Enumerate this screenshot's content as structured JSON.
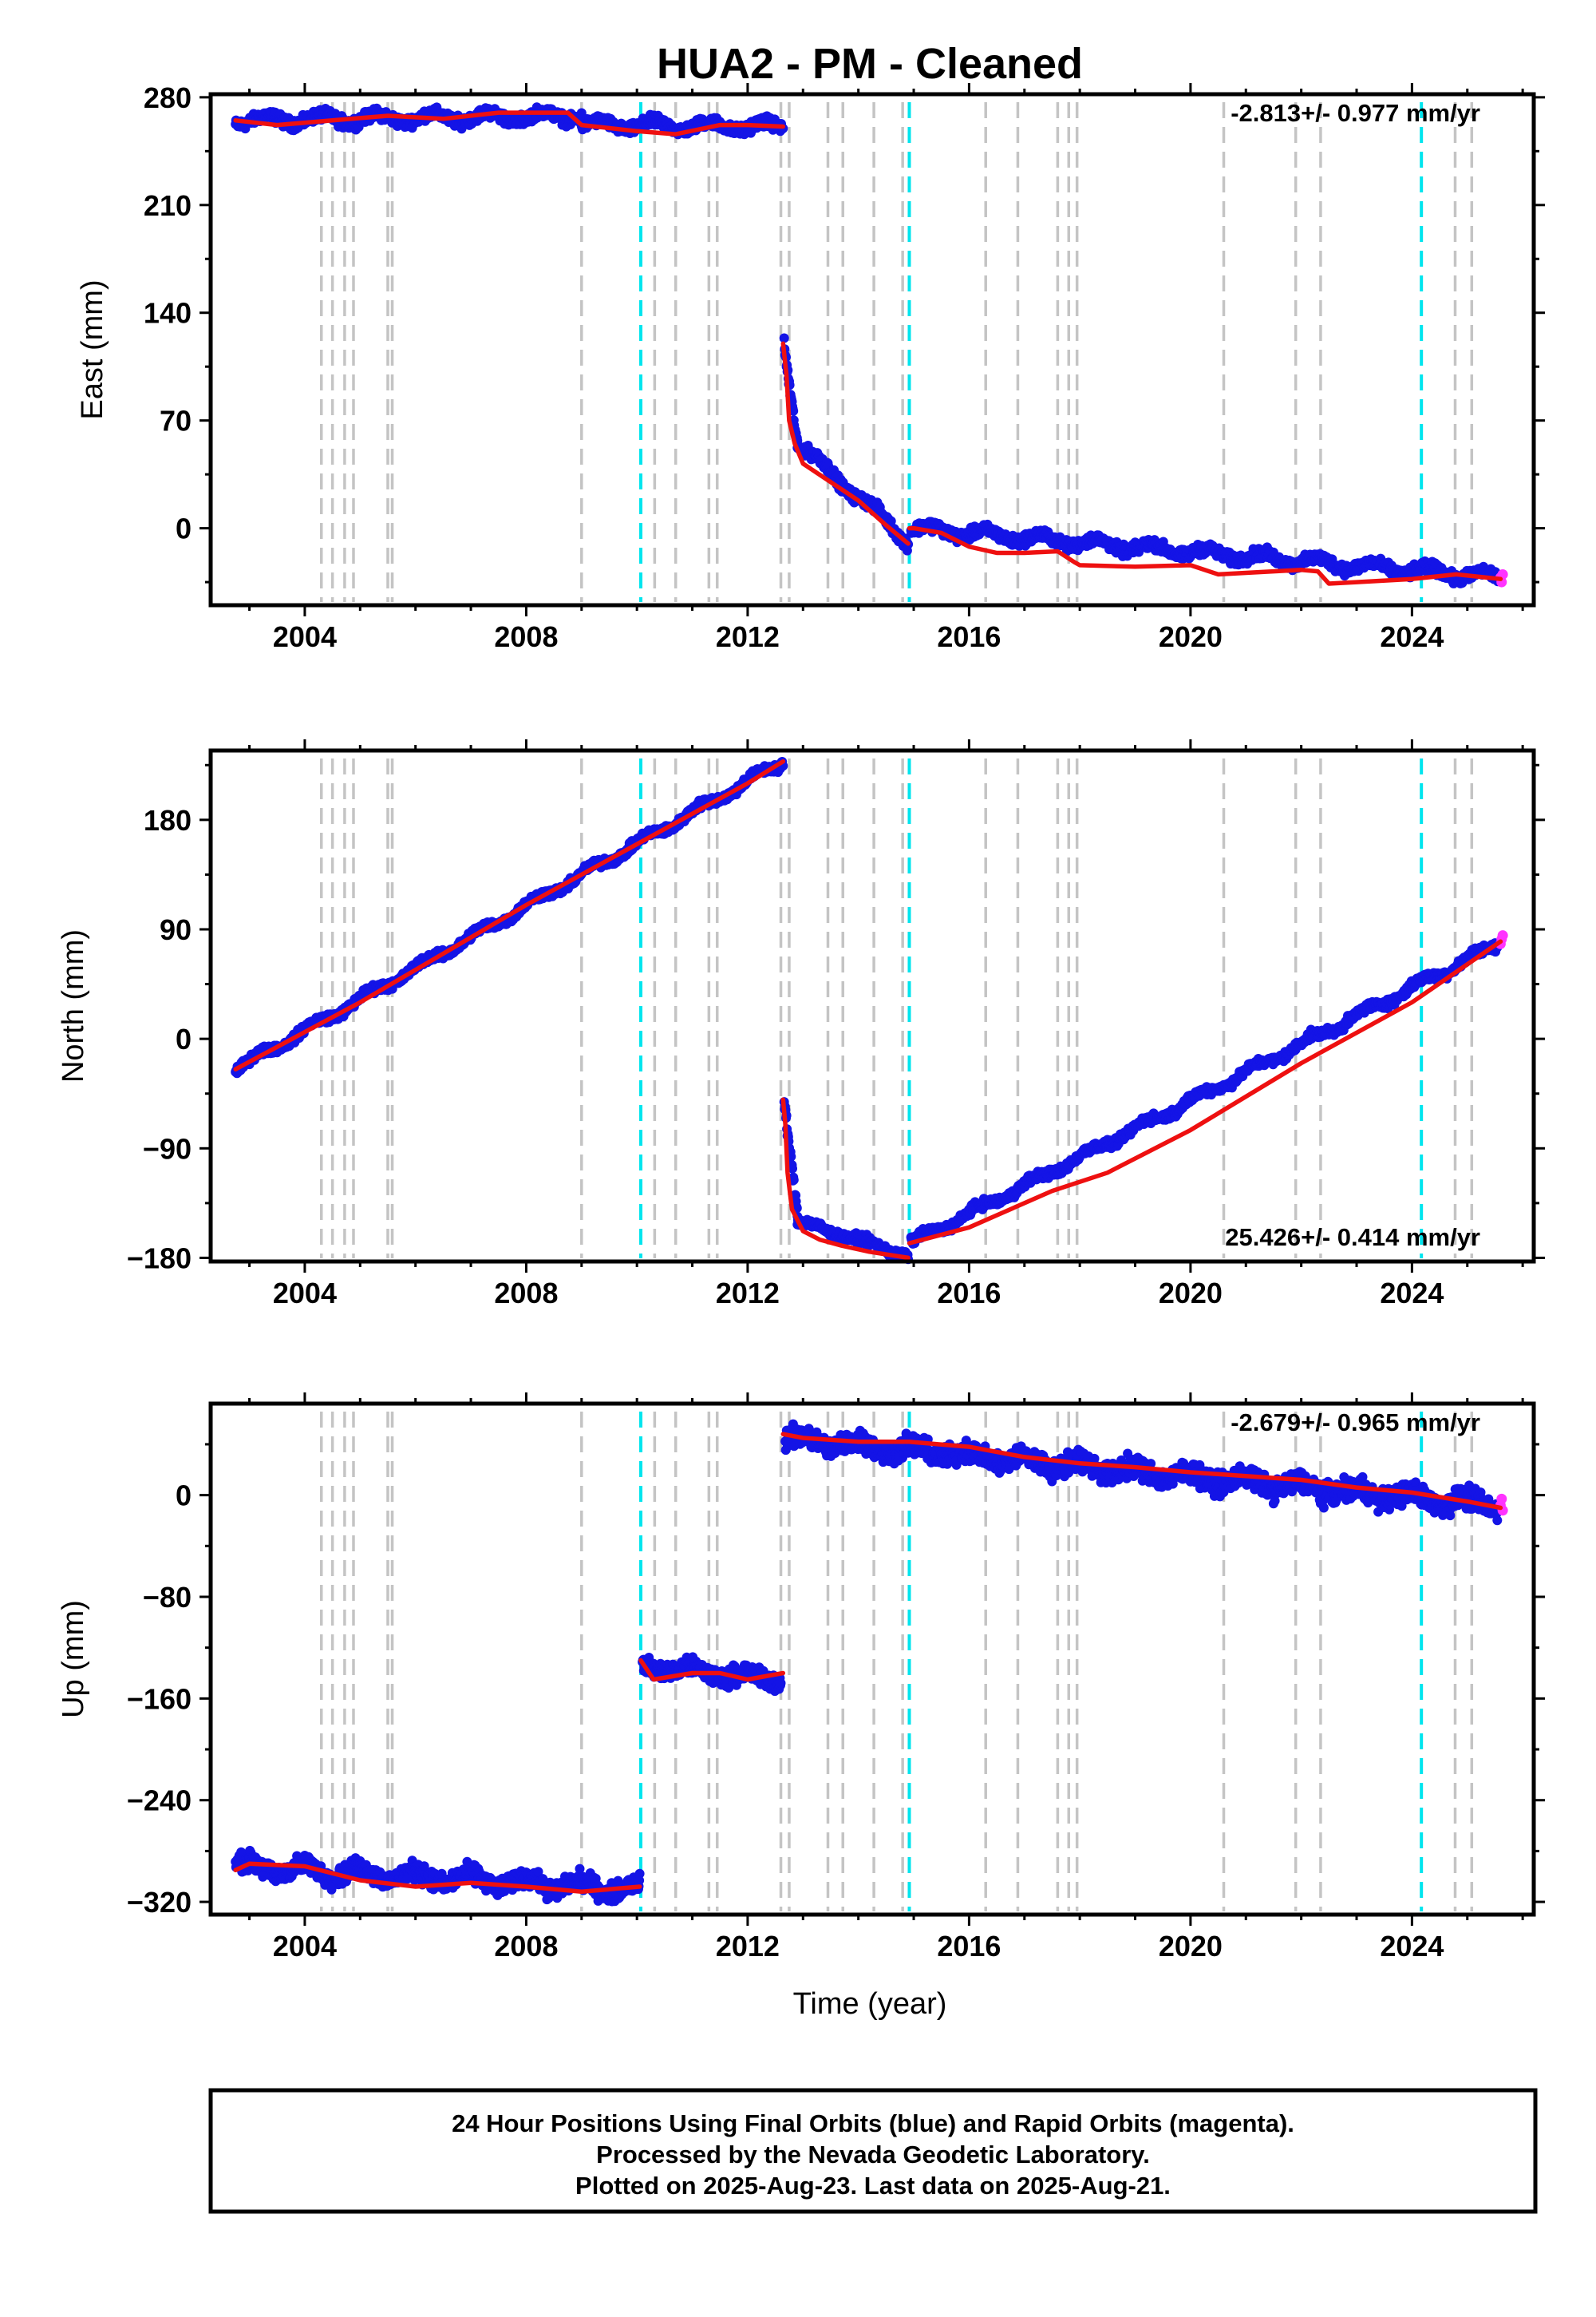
{
  "figure": {
    "title": "HUA2  - PM - Cleaned",
    "xlabel": "Time (year)",
    "caption": [
      "24 Hour Positions Using Final Orbits (blue) and Rapid Orbits (magenta).",
      "Processed by the Nevada Geodetic Laboratory.",
      "Plotted on 2025-Aug-23. Last data on 2025-Aug-21."
    ],
    "colors": {
      "final_orbit_points": "#1414e6",
      "rapid_orbit_points": "#ff33ff",
      "model_line": "#ee1010",
      "equipment_change_lines": "#c4c4c4",
      "earthquake_lines": "#00e5ee"
    },
    "equipment_change_years": [
      2004.3,
      2004.5,
      2004.72,
      2004.88,
      2005.5,
      2005.58,
      2009.0,
      2010.32,
      2010.7,
      2011.3,
      2011.45,
      2012.6,
      2012.75,
      2013.45,
      2013.72,
      2014.28,
      2014.8,
      2016.3,
      2016.88,
      2017.6,
      2017.8,
      2017.95,
      2020.6,
      2021.9,
      2022.35,
      2024.78,
      2025.08
    ],
    "earthquake_years": [
      2010.07,
      2014.92,
      2024.17
    ]
  },
  "chart_data": [
    {
      "type": "scatter",
      "component": "east",
      "ylabel": "East (mm)",
      "rate_label": "-2.813+/- 0.977 mm/yr",
      "xlim": [
        2002.3,
        2026.2
      ],
      "ylim": [
        -50,
        282
      ],
      "xticks": [
        2004,
        2008,
        2012,
        2016,
        2020,
        2024
      ],
      "yticks": [
        0,
        70,
        140,
        210,
        280
      ],
      "model_series": [
        {
          "x": [
            2002.75,
            2003.5,
            2004.5,
            2005.5,
            2006.5,
            2007.5,
            2008.75,
            2009.0,
            2010.0,
            2010.7,
            2011.5,
            2012.0,
            2012.64
          ],
          "y": [
            265,
            262,
            265,
            268,
            266,
            270,
            270,
            262,
            258,
            256,
            262,
            262,
            261
          ]
        },
        {
          "x": [
            2012.64,
            2012.7,
            2012.75,
            2012.85,
            2013.0,
            2013.5,
            2014.0,
            2014.5,
            2014.9
          ],
          "y": [
            120,
            100,
            70,
            55,
            42,
            30,
            18,
            2,
            -10
          ]
        },
        {
          "x": [
            2014.92,
            2015.0,
            2015.5,
            2016.0,
            2016.5,
            2017.0,
            2017.6,
            2017.9,
            2018.0,
            2019.0,
            2020.0,
            2020.5,
            2021.5,
            2022.0,
            2022.3,
            2022.5,
            2023.0,
            2024.0,
            2024.8,
            2025.6
          ],
          "y": [
            0,
            0,
            -3,
            -12,
            -16,
            -16,
            -15,
            -22,
            -24,
            -25,
            -24,
            -30,
            -28,
            -27,
            -28,
            -36,
            -35,
            -33,
            -30,
            -33
          ]
        }
      ],
      "final_points": {
        "segments": [
          {
            "start": 2002.75,
            "end": 2009.0,
            "y_start": 265,
            "y_end": 268,
            "wobble": 3,
            "noise": 3
          },
          {
            "start": 2009.0,
            "end": 2012.64,
            "y_start": 262,
            "y_end": 261,
            "wobble": 3,
            "noise": 3
          },
          {
            "start": 2012.66,
            "end": 2012.9,
            "y_start": 120,
            "y_end": 55,
            "wobble": 2,
            "noise": 4
          },
          {
            "start": 2012.9,
            "end": 2014.9,
            "y_start": 55,
            "y_end": -8,
            "wobble": 3,
            "noise": 3
          },
          {
            "start": 2014.95,
            "end": 2025.55,
            "y_start": 0,
            "y_end": -32,
            "wobble": 3,
            "noise": 3
          }
        ]
      },
      "rapid_points": {
        "x": [
          2025.6,
          2025.62,
          2025.64
        ],
        "y": [
          -32,
          -35,
          -30
        ]
      }
    },
    {
      "type": "scatter",
      "component": "north",
      "ylabel": "North (mm)",
      "rate_label": "25.426+/- 0.414 mm/yr",
      "xlim": [
        2002.3,
        2026.2
      ],
      "ylim": [
        -183,
        237
      ],
      "xticks": [
        2004,
        2008,
        2012,
        2016,
        2020,
        2024
      ],
      "yticks": [
        -180,
        -90,
        0,
        90,
        180
      ],
      "model_series": [
        {
          "x": [
            2002.75,
            2005.0,
            2008.0,
            2010.0,
            2012.0,
            2012.64
          ],
          "y": [
            -25,
            30,
            110,
            160,
            210,
            228
          ]
        },
        {
          "x": [
            2012.64,
            2012.68,
            2012.72,
            2012.8,
            2013.0,
            2013.3,
            2013.7,
            2014.2,
            2014.9
          ],
          "y": [
            -50,
            -70,
            -110,
            -140,
            -158,
            -165,
            -170,
            -175,
            -180
          ]
        },
        {
          "x": [
            2014.92,
            2016.0,
            2017.5,
            2018.5,
            2020.0,
            2022.0,
            2024.0,
            2025.6
          ],
          "y": [
            -168,
            -155,
            -125,
            -110,
            -75,
            -20,
            30,
            80
          ]
        }
      ],
      "final_points": {
        "segments": [
          {
            "start": 2002.75,
            "end": 2012.64,
            "y_start": -25,
            "y_end": 228,
            "wobble": 3,
            "noise": 3
          },
          {
            "start": 2012.66,
            "end": 2012.9,
            "y_start": -50,
            "y_end": -145,
            "wobble": 2,
            "noise": 5
          },
          {
            "start": 2012.9,
            "end": 2014.9,
            "y_start": -150,
            "y_end": -178,
            "wobble": 2,
            "noise": 3
          },
          {
            "start": 2014.95,
            "end": 2025.55,
            "y_start": -168,
            "y_end": 78,
            "wobble": 3,
            "noise": 3
          }
        ]
      },
      "rapid_points": {
        "x": [
          2025.6,
          2025.62,
          2025.64
        ],
        "y": [
          78,
          82,
          85
        ]
      }
    },
    {
      "type": "scatter",
      "component": "up",
      "ylabel": "Up (mm)",
      "rate_label": "-2.679+/- 0.965 mm/yr",
      "xlim": [
        2002.3,
        2026.2
      ],
      "ylim": [
        -330,
        72
      ],
      "xticks": [
        2004,
        2008,
        2012,
        2016,
        2020,
        2024
      ],
      "yticks": [
        -320,
        -240,
        -160,
        -80,
        0
      ],
      "model_series": [
        {
          "x": [
            2002.75,
            2003.0,
            2004.0,
            2005.0,
            2006.0,
            2007.0,
            2008.0,
            2009.0,
            2010.05
          ],
          "y": [
            -295,
            -290,
            -292,
            -303,
            -308,
            -305,
            -308,
            -312,
            -308
          ]
        },
        {
          "x": [
            2010.07,
            2010.3,
            2011.0,
            2011.5,
            2012.0,
            2012.64
          ],
          "y": [
            -130,
            -145,
            -140,
            -140,
            -145,
            -140
          ]
        },
        {
          "x": [
            2012.64,
            2013.0,
            2014.0,
            2014.92,
            2016.0,
            2017.0,
            2018.0,
            2019.0,
            2020.0,
            2021.0,
            2022.0,
            2023.0,
            2024.0,
            2025.0,
            2025.6
          ],
          "y": [
            48,
            45,
            42,
            42,
            38,
            30,
            25,
            22,
            18,
            15,
            12,
            6,
            2,
            -5,
            -10
          ]
        }
      ],
      "final_points": {
        "segments": [
          {
            "start": 2002.75,
            "end": 2010.05,
            "y_start": -292,
            "y_end": -310,
            "wobble": 5,
            "noise": 6
          },
          {
            "start": 2010.1,
            "end": 2012.6,
            "y_start": -135,
            "y_end": -145,
            "wobble": 3,
            "noise": 6
          },
          {
            "start": 2012.68,
            "end": 2025.55,
            "y_start": 45,
            "y_end": -8,
            "wobble": 4,
            "noise": 7
          }
        ]
      },
      "rapid_points": {
        "x": [
          2025.6,
          2025.62,
          2025.64
        ],
        "y": [
          -8,
          -3,
          -12
        ]
      }
    }
  ]
}
